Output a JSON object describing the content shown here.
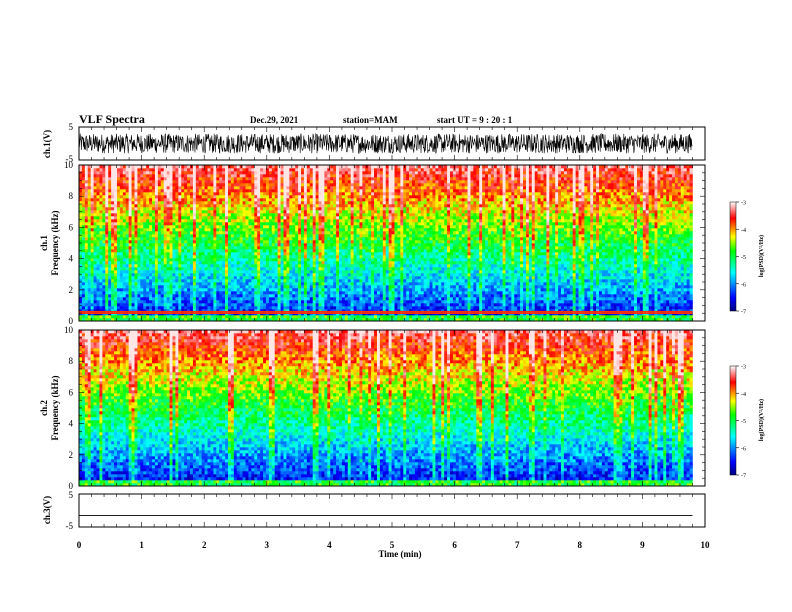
{
  "header": {
    "title": "VLF Spectra",
    "date": "Dec.29, 2021",
    "station": "station=MAM",
    "start": "start  UT =   9 : 20 : 1"
  },
  "chart_data": [
    {
      "type": "line",
      "panel": "ch1-waveform",
      "ylabel": "ch.1(V)",
      "ylim": [
        -5,
        5
      ],
      "yticks": [
        5,
        -5
      ],
      "xlim": [
        0,
        10
      ],
      "data_xrange": [
        0,
        9.8
      ],
      "description_values": {
        "amplitude_range": [
          -3.0,
          3.0
        ]
      },
      "color": "#000000"
    },
    {
      "type": "heatmap",
      "panel": "ch1-spectrogram",
      "ylabel_top": "ch.1",
      "ylabel": "Frequency  (kHz)",
      "ylim": [
        0,
        10
      ],
      "yticks": [
        0,
        2,
        4,
        6,
        8,
        10
      ],
      "xlim": [
        0,
        10
      ],
      "data_xrange": [
        0,
        9.8
      ],
      "colorbar": {
        "label": "log(PSD)(V²/Hz)",
        "range": [
          -7,
          -3
        ],
        "ticks": [
          "-3",
          "-4",
          "-5",
          "-6",
          "-7"
        ]
      },
      "features": {
        "interference_lines_khz": [
          0.5,
          0.6
        ]
      }
    },
    {
      "type": "heatmap",
      "panel": "ch2-spectrogram",
      "ylabel_top": "ch.2",
      "ylabel": "Frequency  (kHz)",
      "ylim": [
        0,
        10
      ],
      "yticks": [
        0,
        2,
        4,
        6,
        8,
        10
      ],
      "xlim": [
        0,
        10
      ],
      "data_xrange": [
        0,
        9.8
      ],
      "colorbar": {
        "label": "log(PSD)(V²/Hz)",
        "range": [
          -7,
          -3
        ],
        "ticks": [
          "-3",
          "-4",
          "-5",
          "-6",
          "-7"
        ]
      }
    },
    {
      "type": "line",
      "panel": "ch3-waveform",
      "ylabel": "ch.3(V)",
      "ylim": [
        -5,
        5
      ],
      "yticks": [
        5,
        -5
      ],
      "xlim": [
        0,
        10
      ],
      "data_xrange": [
        0,
        9.8
      ],
      "values": {
        "constant": -1.5
      },
      "color": "#000000"
    }
  ],
  "xaxis": {
    "label": "Time  (min)",
    "ticks": [
      "0",
      "1",
      "2",
      "3",
      "4",
      "5",
      "6",
      "7",
      "8",
      "9",
      "10"
    ]
  }
}
